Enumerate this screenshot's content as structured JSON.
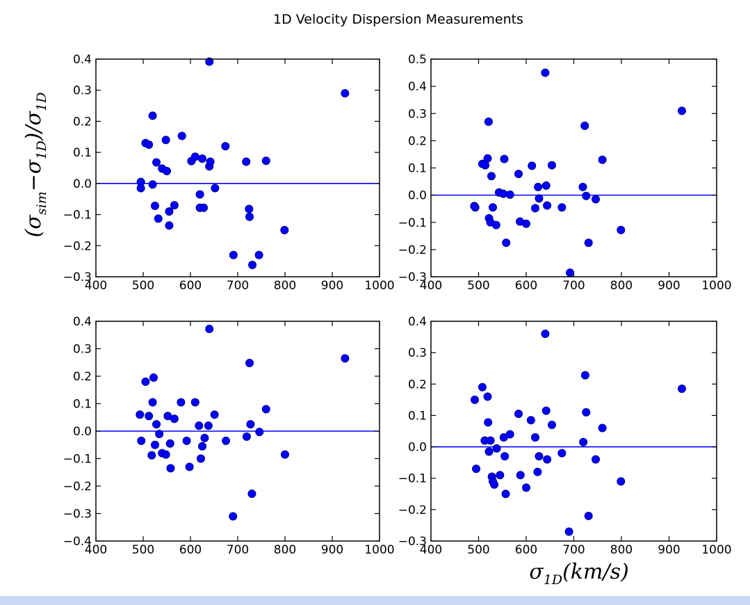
{
  "figure": {
    "title": "1D Velocity Dispersion Measurements",
    "ylabel": "(σ_sim − σ_1D)/σ_1D",
    "xlabel": "σ_1D(km/s)"
  },
  "colors": {
    "points": "#0000ff",
    "reference_line": "#0000ff"
  },
  "chart_data": [
    {
      "type": "scatter",
      "panel": "top-left",
      "xlim": [
        400,
        1000
      ],
      "ylim": [
        -0.3,
        0.4
      ],
      "xticks": [
        "400",
        "500",
        "600",
        "700",
        "800",
        "900",
        "1000"
      ],
      "yticks": [
        "−0.3",
        "−0.2",
        "−0.1",
        "0.0",
        "0.1",
        "0.2",
        "0.3",
        "0.4"
      ],
      "hline": 0.0,
      "x": [
        495,
        495,
        505,
        512,
        520,
        520,
        525,
        528,
        532,
        540,
        548,
        550,
        555,
        555,
        566,
        582,
        602,
        610,
        620,
        620,
        625,
        628,
        640,
        640,
        642,
        652,
        674,
        691,
        718,
        724,
        725,
        731,
        745,
        760,
        799,
        927
      ],
      "y": [
        0.005,
        -0.015,
        0.13,
        0.125,
        0.218,
        -0.003,
        -0.072,
        0.068,
        -0.113,
        0.048,
        0.14,
        0.04,
        -0.09,
        -0.135,
        -0.07,
        0.153,
        0.072,
        0.086,
        -0.035,
        -0.078,
        0.08,
        -0.078,
        0.392,
        0.055,
        0.07,
        -0.015,
        0.12,
        -0.23,
        0.07,
        -0.082,
        -0.107,
        -0.262,
        -0.23,
        0.073,
        -0.15,
        0.29
      ]
    },
    {
      "type": "scatter",
      "panel": "top-right",
      "xlim": [
        400,
        1000
      ],
      "ylim": [
        -0.3,
        0.5
      ],
      "xticks": [
        "400",
        "500",
        "600",
        "700",
        "800",
        "900",
        "1000"
      ],
      "yticks": [
        "−0.3",
        "−0.2",
        "−0.1",
        "0.0",
        "0.1",
        "0.2",
        "0.3",
        "0.4",
        "0.5"
      ],
      "hline": 0.0,
      "x": [
        491,
        493,
        508,
        514,
        519,
        521,
        522,
        525,
        527,
        530,
        537,
        543,
        552,
        554,
        558,
        566,
        584,
        587,
        600,
        612,
        619,
        625,
        627,
        640,
        642,
        644,
        654,
        675,
        692,
        719,
        723,
        726,
        731,
        746,
        760,
        799,
        927
      ],
      "y": [
        -0.04,
        -0.045,
        0.115,
        0.11,
        0.135,
        0.27,
        -0.085,
        -0.1,
        0.07,
        -0.045,
        -0.11,
        0.01,
        0.005,
        0.133,
        -0.175,
        0.002,
        0.078,
        -0.097,
        -0.105,
        0.108,
        -0.048,
        0.03,
        -0.012,
        0.45,
        0.035,
        -0.038,
        0.11,
        -0.045,
        -0.285,
        0.03,
        0.255,
        -0.003,
        -0.175,
        -0.015,
        0.13,
        -0.128,
        0.31
      ]
    },
    {
      "type": "scatter",
      "panel": "bottom-left",
      "xlim": [
        400,
        1000
      ],
      "ylim": [
        -0.4,
        0.4
      ],
      "xticks": [
        "400",
        "500",
        "600",
        "700",
        "800",
        "900",
        "1000"
      ],
      "yticks": [
        "−0.4",
        "−0.3",
        "−0.2",
        "−0.1",
        "0.0",
        "0.1",
        "0.2",
        "0.3",
        "0.4"
      ],
      "hline": 0.0,
      "x": [
        493,
        496,
        505,
        512,
        518,
        520,
        522,
        525,
        528,
        534,
        540,
        548,
        552,
        557,
        558,
        566,
        580,
        592,
        598,
        610,
        618,
        622,
        625,
        630,
        638,
        640,
        651,
        675,
        690,
        719,
        725,
        727,
        730,
        746,
        760,
        800,
        927
      ],
      "y": [
        0.06,
        -0.035,
        0.18,
        0.055,
        -0.088,
        0.105,
        0.195,
        -0.05,
        0.025,
        -0.01,
        -0.08,
        -0.085,
        0.055,
        -0.045,
        -0.135,
        0.045,
        0.105,
        -0.035,
        -0.13,
        0.105,
        0.02,
        -0.1,
        -0.055,
        -0.025,
        0.02,
        0.372,
        0.06,
        -0.035,
        -0.31,
        -0.02,
        0.248,
        0.025,
        -0.228,
        -0.003,
        0.08,
        -0.085,
        0.265
      ]
    },
    {
      "type": "scatter",
      "panel": "bottom-right",
      "xlim": [
        400,
        1000
      ],
      "ylim": [
        -0.3,
        0.4
      ],
      "xticks": [
        "400",
        "500",
        "600",
        "700",
        "800",
        "900",
        "1000"
      ],
      "yticks": [
        "−0.3",
        "−0.2",
        "−0.1",
        "0.0",
        "0.1",
        "0.2",
        "0.3",
        "0.4"
      ],
      "hline": 0.0,
      "x": [
        492,
        495,
        508,
        513,
        519,
        520,
        522,
        525,
        528,
        530,
        533,
        538,
        545,
        553,
        555,
        557,
        566,
        584,
        588,
        600,
        610,
        619,
        624,
        627,
        640,
        642,
        644,
        654,
        675,
        690,
        720,
        724,
        726,
        731,
        746,
        760,
        799,
        927
      ],
      "y": [
        0.15,
        -0.07,
        0.19,
        0.02,
        0.16,
        0.078,
        -0.015,
        0.02,
        -0.095,
        -0.11,
        -0.12,
        -0.005,
        -0.09,
        0.03,
        -0.03,
        -0.15,
        0.04,
        0.105,
        -0.09,
        -0.13,
        0.085,
        0.03,
        -0.08,
        -0.03,
        0.36,
        0.115,
        -0.04,
        0.07,
        -0.02,
        -0.27,
        0.015,
        0.228,
        0.11,
        -0.22,
        -0.04,
        0.06,
        -0.11,
        0.185
      ]
    }
  ]
}
